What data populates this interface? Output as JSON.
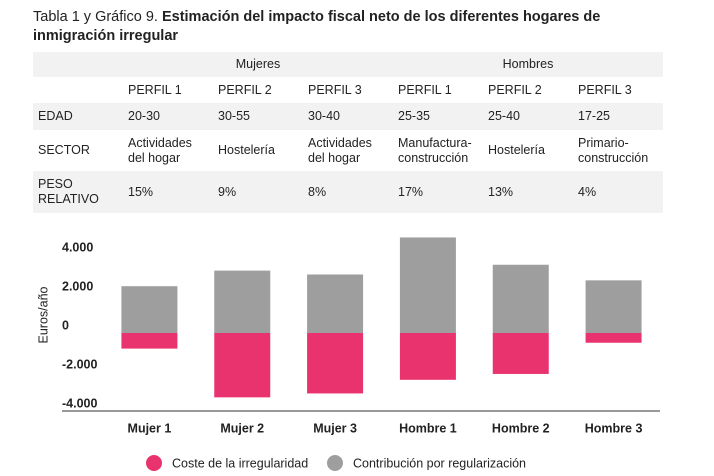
{
  "header": {
    "title_prefix": "Tabla 1 y Gráfico 9.",
    "title": "Estimación del impacto fiscal neto de los diferentes hogares de inmigración irregular"
  },
  "table": {
    "groups": [
      "Mujeres",
      "Hombres"
    ],
    "profiles": [
      "PERFIL 1",
      "PERFIL 2",
      "PERFIL 3",
      "PERFIL 1",
      "PERFIL 2",
      "PERFIL 3"
    ],
    "rows": [
      [
        "EDAD",
        "20-30",
        "30-55",
        "30-40",
        "25-35",
        "25-40",
        "17-25"
      ],
      [
        "SECTOR",
        "Actividades del hogar",
        "Hostelería",
        "Actividades del hogar",
        "Manufactura-construcción",
        "Hostelería",
        "Primario-construcción"
      ],
      [
        "PESO RELATIVO",
        "15%",
        "9%",
        "8%",
        "17%",
        "13%",
        "4%"
      ]
    ]
  },
  "chart_data": {
    "type": "bar",
    "stacked": true,
    "y_label": "Euros/año",
    "categories": [
      "Mujer 1",
      "Mujer 2",
      "Mujer 3",
      "Hombre 1",
      "Hombre 2",
      "Hombre 3"
    ],
    "series": [
      {
        "name": "Coste de la irregularidad",
        "color": "#e8336e",
        "values": [
          -800,
          -3300,
          -3100,
          -2400,
          -2100,
          -500
        ]
      },
      {
        "name": "Contribución por regularización",
        "color": "#9e9e9e",
        "values": [
          2400,
          3200,
          3000,
          4900,
          3500,
          2700
        ]
      }
    ],
    "ylim": [
      -4000,
      5000
    ],
    "yticks": [
      {
        "value": -4000,
        "label": "-4.000"
      },
      {
        "value": -2000,
        "label": "-2.000"
      },
      0,
      {
        "value": 2000,
        "label": "2.000"
      },
      {
        "value": 4000,
        "label": "4.000"
      }
    ]
  }
}
